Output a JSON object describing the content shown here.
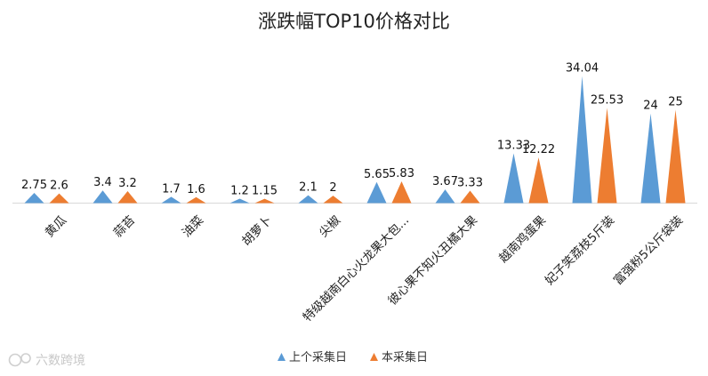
{
  "chart_data": {
    "type": "bar",
    "mark_shape": "triangle",
    "title": "涨跌幅TOP10价格对比",
    "categories": [
      "黄瓜",
      "蒜苔",
      "油菜",
      "胡萝卜",
      "尖椒",
      "特级越南白心火龙果大包...",
      "彼心果不知火丑橘大果",
      "越南鸡蛋果",
      "妃子笑荔枝5斤装",
      "富强粉5公斤袋装"
    ],
    "series": [
      {
        "name": "上个采集日",
        "color": "#5b9bd5",
        "values": [
          2.75,
          3.4,
          1.7,
          1.2,
          2.1,
          5.65,
          3.67,
          13.33,
          34.04,
          24
        ]
      },
      {
        "name": "本采集日",
        "color": "#ed7d31",
        "values": [
          2.6,
          3.2,
          1.6,
          1.15,
          2,
          5.83,
          3.33,
          12.22,
          25.53,
          25
        ]
      }
    ],
    "legend_position": "bottom",
    "grid": false
  },
  "watermark": "六数跨境"
}
